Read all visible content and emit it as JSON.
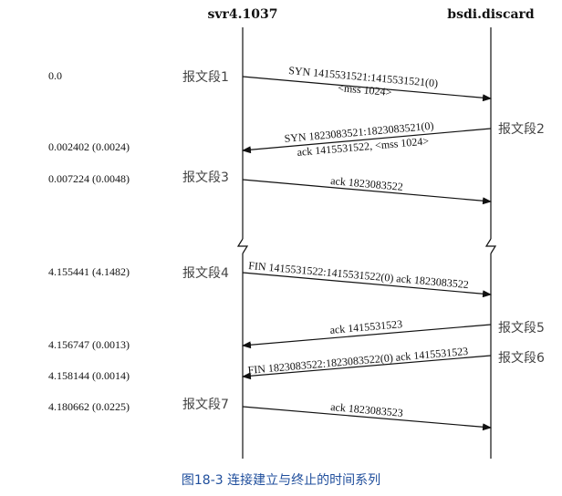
{
  "hosts": {
    "left": "svr4.1037",
    "right": "bsdi.discard"
  },
  "times": [
    "0.0",
    "0.002402 (0.0024)",
    "0.007224 (0.0048)",
    "4.155441 (4.1482)",
    "4.156747 (0.0013)",
    "4.158144 (0.0014)",
    "4.180662 (0.0225)"
  ],
  "segment_labels": [
    "报文段1",
    "报文段2",
    "报文段3",
    "报文段4",
    "报文段5",
    "报文段6",
    "报文段7"
  ],
  "messages": [
    {
      "dir": "right",
      "lines": [
        "SYN 1415531521:1415531521(0)",
        "<mss 1024>"
      ]
    },
    {
      "dir": "left",
      "lines": [
        "SYN 1823083521:1823083521(0)",
        "ack 1415531522, <mss 1024>"
      ]
    },
    {
      "dir": "right",
      "lines": [
        "ack 1823083522"
      ]
    },
    {
      "dir": "right",
      "lines": [
        "FIN 1415531522:1415531522(0) ack 1823083522"
      ]
    },
    {
      "dir": "left",
      "lines": [
        "ack 1415531523"
      ]
    },
    {
      "dir": "left",
      "lines": [
        "FIN 1823083522:1823083522(0) ack 1415531523"
      ]
    },
    {
      "dir": "right",
      "lines": [
        "ack 1823083523"
      ]
    }
  ],
  "caption": "图18-3   连接建立与终止的时间系列"
}
